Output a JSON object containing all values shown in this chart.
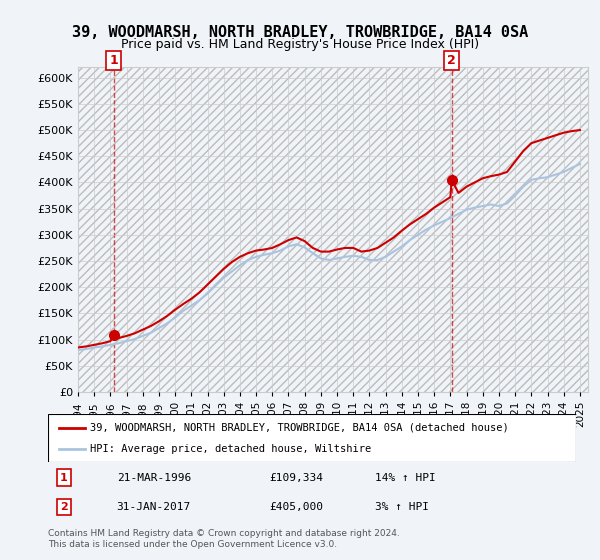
{
  "title": "39, WOODMARSH, NORTH BRADLEY, TROWBRIDGE, BA14 0SA",
  "subtitle": "Price paid vs. HM Land Registry's House Price Index (HPI)",
  "xlabel": "",
  "ylabel": "",
  "ylim": [
    0,
    620000
  ],
  "yticks": [
    0,
    50000,
    100000,
    150000,
    200000,
    250000,
    300000,
    350000,
    400000,
    450000,
    500000,
    550000,
    600000
  ],
  "ytick_labels": [
    "£0",
    "£50K",
    "£100K",
    "£150K",
    "£200K",
    "£250K",
    "£300K",
    "£350K",
    "£400K",
    "£450K",
    "£500K",
    "£550K",
    "£600K"
  ],
  "xlim_start": 1994.0,
  "xlim_end": 2025.5,
  "hpi_color": "#aac4e0",
  "house_color": "#cc0000",
  "marker1_date": 1996.22,
  "marker1_value": 109334,
  "marker2_date": 2017.08,
  "marker2_value": 405000,
  "point1_label": "1",
  "point2_label": "2",
  "legend_house": "39, WOODMARSH, NORTH BRADLEY, TROWBRIDGE, BA14 0SA (detached house)",
  "legend_hpi": "HPI: Average price, detached house, Wiltshire",
  "table_row1": [
    "1",
    "21-MAR-1996",
    "£109,334",
    "14% ↑ HPI"
  ],
  "table_row2": [
    "2",
    "31-JAN-2017",
    "£405,000",
    "3% ↑ HPI"
  ],
  "copyright": "Contains HM Land Registry data © Crown copyright and database right 2024.\nThis data is licensed under the Open Government Licence v3.0.",
  "bg_color": "#f0f4f8",
  "plot_bg": "#ffffff",
  "hpi_x": [
    1994,
    1994.5,
    1995,
    1995.5,
    1996,
    1996.5,
    1997,
    1997.5,
    1998,
    1998.5,
    1999,
    1999.5,
    2000,
    2000.5,
    2001,
    2001.5,
    2002,
    2002.5,
    2003,
    2003.5,
    2004,
    2004.5,
    2005,
    2005.5,
    2006,
    2006.5,
    2007,
    2007.5,
    2008,
    2008.5,
    2009,
    2009.5,
    2010,
    2010.5,
    2011,
    2011.5,
    2012,
    2012.5,
    2013,
    2013.5,
    2014,
    2014.5,
    2015,
    2015.5,
    2016,
    2016.5,
    2017,
    2017.5,
    2018,
    2018.5,
    2019,
    2019.5,
    2020,
    2020.5,
    2021,
    2021.5,
    2022,
    2022.5,
    2023,
    2023.5,
    2024,
    2024.5,
    2025
  ],
  "hpi_y": [
    80000,
    82000,
    85000,
    87000,
    90000,
    93000,
    97000,
    101000,
    107000,
    113000,
    122000,
    131000,
    142000,
    155000,
    165000,
    175000,
    188000,
    203000,
    218000,
    230000,
    242000,
    252000,
    258000,
    262000,
    265000,
    270000,
    278000,
    282000,
    276000,
    265000,
    255000,
    252000,
    255000,
    258000,
    260000,
    258000,
    252000,
    252000,
    258000,
    268000,
    278000,
    290000,
    300000,
    310000,
    318000,
    325000,
    332000,
    340000,
    348000,
    352000,
    355000,
    358000,
    355000,
    360000,
    375000,
    392000,
    405000,
    408000,
    410000,
    415000,
    420000,
    428000,
    435000
  ],
  "house_x": [
    1994,
    1994.5,
    1995,
    1995.5,
    1996,
    1996.22,
    1996.5,
    1997,
    1997.5,
    1998,
    1998.5,
    1999,
    1999.5,
    2000,
    2000.5,
    2001,
    2001.5,
    2002,
    2002.5,
    2003,
    2003.5,
    2004,
    2004.5,
    2005,
    2005.5,
    2006,
    2006.5,
    2007,
    2007.5,
    2008,
    2008.5,
    2009,
    2009.5,
    2010,
    2010.5,
    2011,
    2011.5,
    2012,
    2012.5,
    2013,
    2013.5,
    2014,
    2014.5,
    2015,
    2015.5,
    2016,
    2016.5,
    2017,
    2017.08,
    2017.5,
    2018,
    2018.5,
    2019,
    2019.5,
    2020,
    2020.5,
    2021,
    2021.5,
    2022,
    2022.5,
    2023,
    2023.5,
    2024,
    2024.5,
    2025
  ],
  "house_y": [
    85000,
    87000,
    90000,
    93000,
    97000,
    109334,
    103000,
    107000,
    112000,
    119000,
    126000,
    135000,
    145000,
    157000,
    168000,
    178000,
    190000,
    205000,
    220000,
    235000,
    248000,
    258000,
    265000,
    270000,
    272000,
    275000,
    282000,
    290000,
    295000,
    288000,
    275000,
    268000,
    268000,
    272000,
    275000,
    275000,
    268000,
    270000,
    275000,
    285000,
    295000,
    308000,
    320000,
    330000,
    340000,
    352000,
    362000,
    372000,
    405000,
    380000,
    392000,
    400000,
    408000,
    412000,
    415000,
    420000,
    440000,
    460000,
    475000,
    480000,
    485000,
    490000,
    495000,
    498000,
    500000
  ]
}
